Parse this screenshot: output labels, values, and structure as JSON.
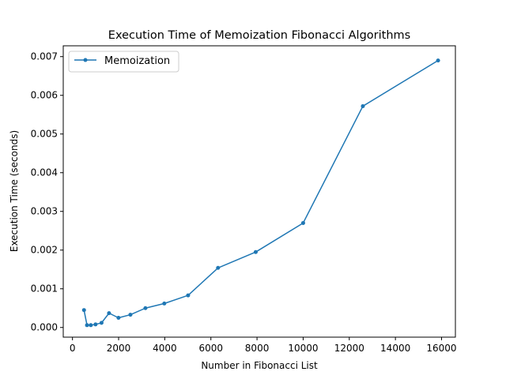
{
  "chart_data": {
    "type": "line",
    "title": "Execution Time of Memoization Fibonacci Algorithms",
    "xlabel": "Number in Fibonacci List",
    "ylabel": "Execution Time (seconds)",
    "xlim": [
      -400,
      16600
    ],
    "ylim": [
      -0.00025,
      0.00728
    ],
    "xticks": [
      0,
      2000,
      4000,
      6000,
      8000,
      10000,
      12000,
      14000,
      16000
    ],
    "xtick_labels": [
      "0",
      "2000",
      "4000",
      "6000",
      "8000",
      "10000",
      "12000",
      "14000",
      "16000"
    ],
    "yticks": [
      0.0,
      0.001,
      0.002,
      0.003,
      0.004,
      0.005,
      0.006,
      0.007
    ],
    "ytick_labels": [
      "0.000",
      "0.001",
      "0.002",
      "0.003",
      "0.004",
      "0.005",
      "0.006",
      "0.007"
    ],
    "grid": false,
    "legend_position": "top-left",
    "series": [
      {
        "name": "Memoization",
        "color": "#1f77b4",
        "marker": "circle",
        "x": [
          500,
          630,
          795,
          1000,
          1260,
          1585,
          1995,
          2512,
          3162,
          3981,
          5012,
          6310,
          7943,
          10000,
          12589,
          15849
        ],
        "y": [
          0.00045,
          6e-05,
          6e-05,
          8e-05,
          0.00012,
          0.00037,
          0.00025,
          0.00033,
          0.0005,
          0.00062,
          0.00083,
          0.00154,
          0.00195,
          0.0027,
          0.00572,
          0.0069
        ]
      }
    ]
  }
}
